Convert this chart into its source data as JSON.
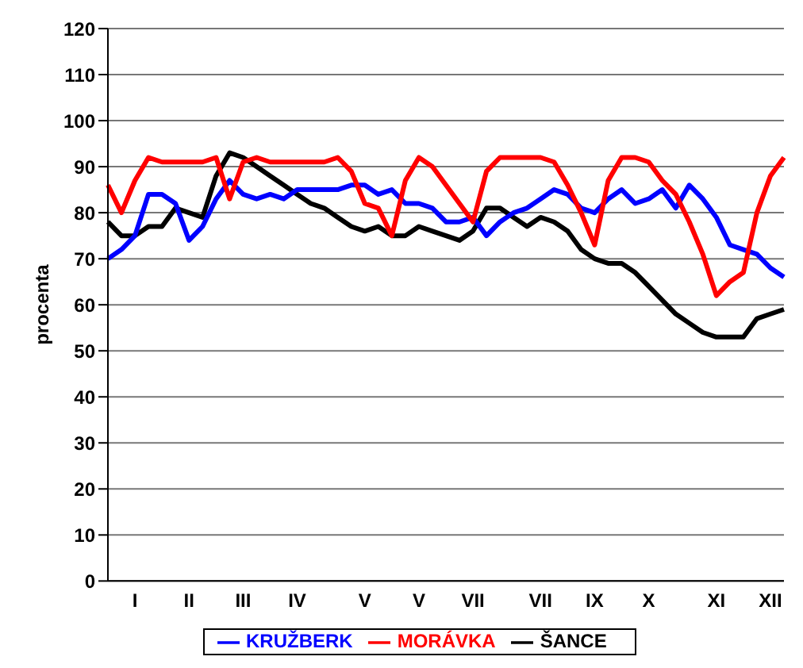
{
  "chart_data": {
    "type": "line",
    "ylabel": "procenta",
    "categories": [
      null,
      null,
      "I",
      null,
      null,
      null,
      "II",
      null,
      null,
      null,
      "III",
      null,
      null,
      null,
      "IV",
      null,
      null,
      null,
      null,
      "V",
      null,
      null,
      null,
      "V",
      null,
      null,
      null,
      "VII",
      null,
      null,
      null,
      null,
      "VII",
      null,
      null,
      null,
      "IX",
      null,
      null,
      null,
      "X",
      null,
      null,
      null,
      null,
      "XI",
      null,
      null,
      null,
      "XII",
      null
    ],
    "series": [
      {
        "name": "ŠANCE",
        "color": "#000000",
        "values": [
          78,
          75,
          75,
          77,
          77,
          81,
          80,
          79,
          88,
          93,
          92,
          90,
          88,
          86,
          84,
          82,
          81,
          79,
          77,
          76,
          77,
          75,
          75,
          77,
          76,
          75,
          74,
          76,
          81,
          81,
          79,
          77,
          79,
          78,
          76,
          72,
          70,
          69,
          69,
          67,
          64,
          61,
          58,
          56,
          54,
          53,
          53,
          53,
          57,
          58,
          59
        ]
      },
      {
        "name": "KRUŽBERK",
        "color": "#0000ff",
        "values": [
          70,
          72,
          75,
          84,
          84,
          82,
          74,
          77,
          83,
          87,
          84,
          83,
          84,
          83,
          85,
          85,
          85,
          85,
          86,
          86,
          84,
          85,
          82,
          82,
          81,
          78,
          78,
          79,
          75,
          78,
          80,
          81,
          83,
          85,
          84,
          81,
          80,
          83,
          85,
          82,
          83,
          85,
          81,
          86,
          83,
          79,
          73,
          72,
          71,
          68,
          66
        ]
      },
      {
        "name": "MORÁVKA",
        "color": "#ff0000",
        "values": [
          86,
          80,
          87,
          92,
          91,
          91,
          91,
          91,
          92,
          83,
          91,
          92,
          91,
          91,
          91,
          91,
          91,
          92,
          89,
          82,
          81,
          75,
          87,
          92,
          90,
          86,
          82,
          78,
          89,
          92,
          92,
          92,
          92,
          91,
          86,
          80,
          73,
          87,
          92,
          92,
          91,
          87,
          84,
          78,
          71,
          62,
          65,
          67,
          80,
          88,
          92
        ]
      }
    ],
    "ylim": [
      0,
      120
    ],
    "yticks": [
      0,
      10,
      20,
      30,
      40,
      50,
      60,
      70,
      80,
      90,
      100,
      110,
      120
    ],
    "grid": "y",
    "legend": "bottom",
    "marker": "none",
    "line_style": "solid"
  }
}
